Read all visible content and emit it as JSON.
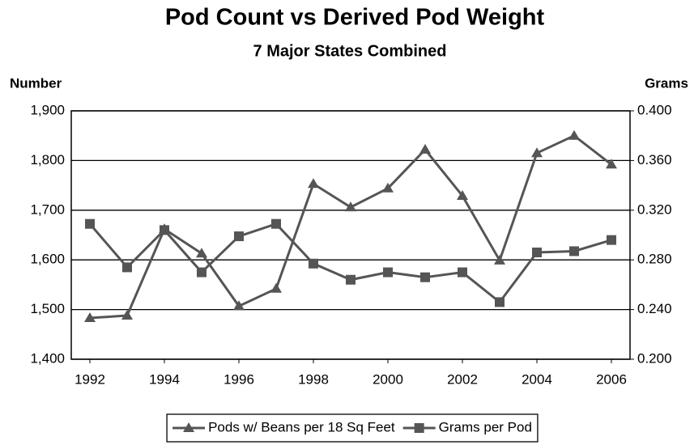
{
  "chart_data": {
    "type": "line",
    "title": "Pod Count vs Derived Pod Weight",
    "subtitle": "7 Major States Combined",
    "y_label": "Number",
    "y2_label": "Grams",
    "x": [
      1992,
      1993,
      1994,
      1995,
      1996,
      1997,
      1998,
      1999,
      2000,
      2001,
      2002,
      2003,
      2004,
      2005,
      2006
    ],
    "xlim": [
      1991.5,
      2006.5
    ],
    "xticks": [
      1992,
      1994,
      1996,
      1998,
      2000,
      2002,
      2004,
      2006
    ],
    "ylim": [
      1400,
      1900
    ],
    "yticks": [
      {
        "value": 1400,
        "label": "1,400"
      },
      {
        "value": 1500,
        "label": "1,500"
      },
      {
        "value": 1600,
        "label": "1,600"
      },
      {
        "value": 1700,
        "label": "1,700"
      },
      {
        "value": 1800,
        "label": "1,800"
      },
      {
        "value": 1900,
        "label": "1,900"
      }
    ],
    "y2lim": [
      0.2,
      0.4
    ],
    "y2ticks": [
      {
        "value": 0.2,
        "label": "0.200"
      },
      {
        "value": 0.24,
        "label": "0.240"
      },
      {
        "value": 0.28,
        "label": "0.280"
      },
      {
        "value": 0.32,
        "label": "0.320"
      },
      {
        "value": 0.36,
        "label": "0.360"
      },
      {
        "value": 0.4,
        "label": "0.400"
      }
    ],
    "grid": true,
    "legend": "bottom",
    "series": [
      {
        "name": "Pods w/ Beans per 18 Sq Feet",
        "color": "#555555",
        "marker": "triangle",
        "values": [
          1483,
          1488,
          1662,
          1613,
          1507,
          1542,
          1753,
          1706,
          1744,
          1822,
          1729,
          1599,
          1815,
          1850,
          1792
        ]
      },
      {
        "name": "Grams per Pod",
        "color": "#555555",
        "marker": "square",
        "axis": "y2",
        "values": [
          0.309,
          0.274,
          0.304,
          0.27,
          0.299,
          0.309,
          0.277,
          0.264,
          0.27,
          0.266,
          0.27,
          0.246,
          0.286,
          0.287,
          0.296
        ]
      }
    ]
  }
}
